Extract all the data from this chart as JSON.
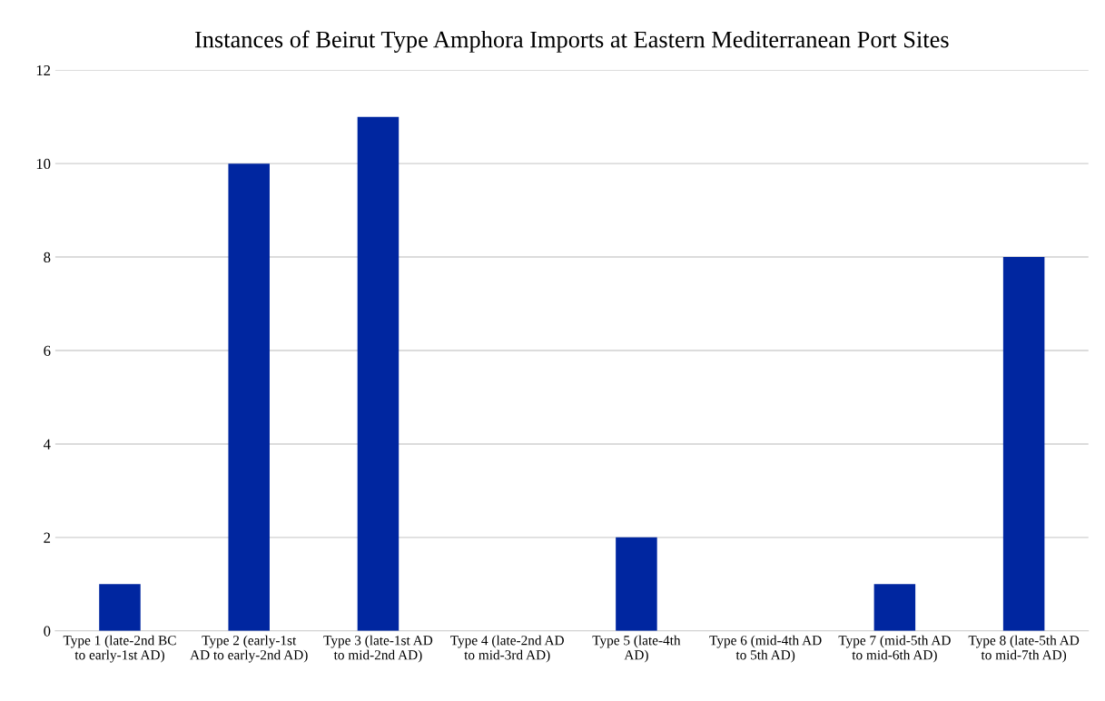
{
  "chart_data": {
    "type": "bar",
    "title": "Instances of Beirut Type Amphora Imports at Eastern Mediterranean Port Sites",
    "categories": [
      "Type 1 (late-2nd BC to early-1st AD)",
      "Type 2 (early-1st AD to early-2nd AD)",
      "Type 3 (late-1st AD to mid-2nd AD)",
      "Type 4 (late-2nd AD to mid-3rd AD)",
      "Type 5 (late-4th AD)",
      "Type 6 (mid-4th AD to 5th AD)",
      "Type 7 (mid-5th AD to mid-6th AD)",
      "Type 8 (late-5th AD to mid-7th AD)"
    ],
    "values": [
      1,
      10,
      11,
      0,
      2,
      0,
      1,
      8
    ],
    "color": "#0026a0",
    "ylim": [
      0,
      12
    ],
    "yticks": [
      0,
      2,
      4,
      6,
      8,
      10,
      12
    ],
    "grid": "y"
  }
}
